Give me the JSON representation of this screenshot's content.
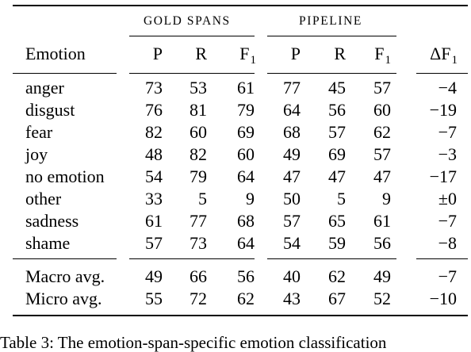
{
  "header": {
    "group_gold": "GOLD SPANS",
    "group_pipeline": "PIPELINE",
    "col_emotion": "Emotion",
    "col_p": "P",
    "col_r": "R",
    "col_f": "F",
    "f_subscript": "1",
    "col_delta": "ΔF",
    "delta_subscript": "1"
  },
  "rows": [
    {
      "emotion": "anger",
      "gp": "73",
      "gr": "53",
      "gf": "61",
      "pp": "77",
      "pr": "45",
      "pf": "57",
      "delta": "−4"
    },
    {
      "emotion": "disgust",
      "gp": "76",
      "gr": "81",
      "gf": "79",
      "pp": "64",
      "pr": "56",
      "pf": "60",
      "delta": "−19"
    },
    {
      "emotion": "fear",
      "gp": "82",
      "gr": "60",
      "gf": "69",
      "pp": "68",
      "pr": "57",
      "pf": "62",
      "delta": "−7"
    },
    {
      "emotion": "joy",
      "gp": "48",
      "gr": "82",
      "gf": "60",
      "pp": "49",
      "pr": "69",
      "pf": "57",
      "delta": "−3"
    },
    {
      "emotion": "no emotion",
      "gp": "54",
      "gr": "79",
      "gf": "64",
      "pp": "47",
      "pr": "47",
      "pf": "47",
      "delta": "−17"
    },
    {
      "emotion": "other",
      "gp": "33",
      "gr": "5",
      "gf": "9",
      "pp": "50",
      "pr": "5",
      "pf": "9",
      "delta": "±0"
    },
    {
      "emotion": "sadness",
      "gp": "61",
      "gr": "77",
      "gf": "68",
      "pp": "57",
      "pr": "65",
      "pf": "61",
      "delta": "−7"
    },
    {
      "emotion": "shame",
      "gp": "57",
      "gr": "73",
      "gf": "64",
      "pp": "54",
      "pr": "59",
      "pf": "56",
      "delta": "−8"
    }
  ],
  "summary": [
    {
      "emotion": "Macro avg.",
      "gp": "49",
      "gr": "66",
      "gf": "56",
      "pp": "40",
      "pr": "62",
      "pf": "49",
      "delta": "−7"
    },
    {
      "emotion": "Micro avg.",
      "gp": "55",
      "gr": "72",
      "gf": "62",
      "pp": "43",
      "pr": "67",
      "pf": "52",
      "delta": "−10"
    }
  ],
  "caption": "Table 3: The emotion-span-specific emotion classification"
}
